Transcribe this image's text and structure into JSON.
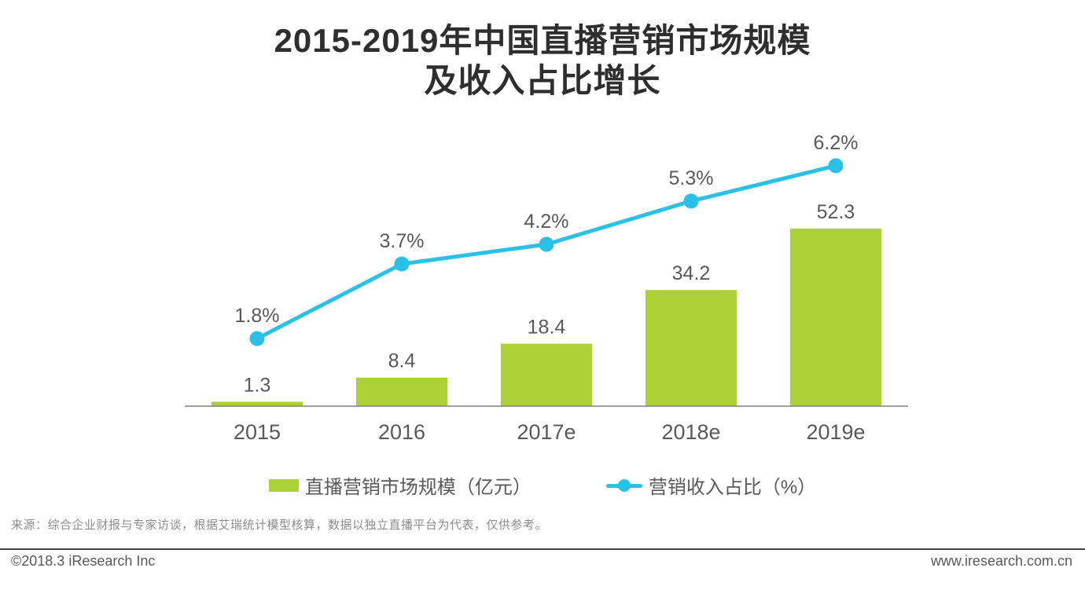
{
  "title": {
    "line1": "2015-2019年中国直播营销市场规模",
    "line2": "及收入占比增长"
  },
  "chart_data": {
    "type": "bar",
    "title": "2015-2019年中国直播营销市场规模及收入占比增长",
    "categories": [
      "2015",
      "2016",
      "2017e",
      "2018e",
      "2019e"
    ],
    "series": [
      {
        "name": "直播营销市场规模（亿元）",
        "type": "bar",
        "values": [
          1.3,
          8.4,
          18.4,
          34.2,
          52.3
        ],
        "color": "#abd136"
      },
      {
        "name": "营销收入占比（%）",
        "type": "line",
        "values": [
          1.8,
          3.7,
          4.2,
          5.3,
          6.2
        ],
        "unit": "%",
        "color": "#2bc0e6"
      }
    ],
    "data_labels": true,
    "grid": false,
    "legend_position": "bottom",
    "xlabel": "",
    "ylabel": "",
    "bar_axis_range": [
      0,
      52.3
    ],
    "line_axis_range_pct": [
      0,
      7
    ]
  },
  "legend": {
    "bar_label": "直播营销市场规模（亿元）",
    "line_label": "营销收入占比（%）"
  },
  "source_note": "来源：综合企业财报与专家访谈，根据艾瑞统计模型核算，数据以独立直播平台为代表，仅供参考。",
  "footer": {
    "copyright": "©2018.3 iResearch Inc",
    "website": "www.iresearch.com.cn"
  },
  "colors": {
    "bar": "#abd136",
    "line": "#2bc0e6",
    "label": "#595959",
    "title": "#2e2e2e",
    "axis": "#808080",
    "source": "#8c8c8c",
    "footer_rule": "#404040"
  }
}
